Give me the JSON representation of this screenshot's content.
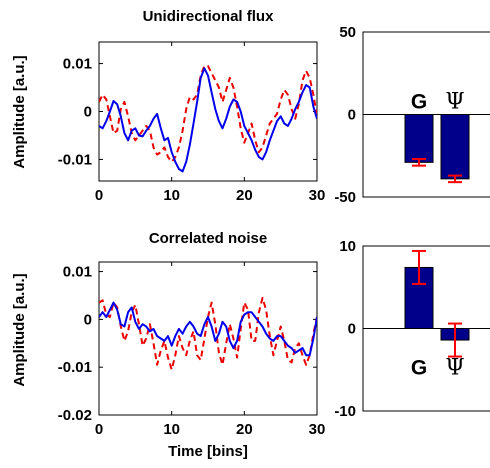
{
  "chart_data": [
    {
      "type": "line",
      "title": "Unidirectional flux",
      "ylabel": "Amplitude [a.u.]",
      "xlabel": "",
      "xlim": [
        0,
        30
      ],
      "ylim": [
        -0.0145,
        0.0145
      ],
      "xticks": [
        "0",
        "10",
        "20",
        "30"
      ],
      "yticks": [
        {
          "value": 0.01,
          "label": "0.01"
        },
        {
          "value": 0,
          "label": "0"
        },
        {
          "value": -0.01,
          "label": "-0.01"
        }
      ],
      "series": [
        {
          "color": "#0000ee",
          "style": "solid",
          "x": [
            0,
            0.5,
            1,
            1.5,
            2,
            2.5,
            3,
            3.5,
            4,
            4.5,
            5,
            5.5,
            6,
            6.5,
            7,
            7.5,
            8,
            8.5,
            9,
            9.5,
            10,
            10.5,
            11,
            11.5,
            12,
            12.5,
            13,
            13.5,
            14,
            14.5,
            15,
            15.5,
            16,
            16.5,
            17,
            17.5,
            18,
            18.5,
            19,
            19.5,
            20,
            20.5,
            21,
            21.5,
            22,
            22.5,
            23,
            23.5,
            24,
            24.5,
            25,
            25.5,
            26,
            26.5,
            27,
            27.5,
            28,
            28.5,
            29,
            29.5,
            30
          ],
          "y": [
            -0.003,
            -0.0035,
            -0.002,
            0,
            0.0022,
            0.0015,
            -0.001,
            -0.0045,
            -0.006,
            -0.004,
            -0.0035,
            -0.005,
            -0.0052,
            -0.004,
            -0.003,
            -0.0015,
            -0.0005,
            -0.0035,
            -0.006,
            -0.0055,
            -0.0085,
            -0.0105,
            -0.012,
            -0.0125,
            -0.0105,
            -0.007,
            -0.0025,
            0.002,
            0.007,
            0.009,
            0.0075,
            0.004,
            0.0005,
            -0.002,
            -0.0035,
            -0.0015,
            0.001,
            0.0025,
            0.002,
            0,
            -0.003,
            -0.0045,
            -0.006,
            -0.008,
            -0.0095,
            -0.01,
            -0.0085,
            -0.006,
            -0.004,
            -0.002,
            -0.001,
            -0.0025,
            -0.003,
            -0.0015,
            0.0005,
            0.002,
            0.004,
            0.0055,
            0.005,
            0.001,
            -0.0015
          ]
        },
        {
          "color": "#ee0000",
          "style": "dashed",
          "x": [
            0,
            0.5,
            1,
            1.5,
            2,
            2.5,
            3,
            3.5,
            4,
            4.5,
            5,
            5.5,
            6,
            6.5,
            7,
            7.5,
            8,
            8.5,
            9,
            9.5,
            10,
            10.5,
            11,
            11.5,
            12,
            12.5,
            13,
            13.5,
            14,
            14.5,
            15,
            15.5,
            16,
            16.5,
            17,
            17.5,
            18,
            18.5,
            19,
            19.5,
            20,
            20.5,
            21,
            21.5,
            22,
            22.5,
            23,
            23.5,
            24,
            24.5,
            25,
            25.5,
            26,
            26.5,
            27,
            27.5,
            28,
            28.5,
            29,
            29.5,
            30
          ],
          "y": [
            0.002,
            0.0035,
            0.0025,
            -0.001,
            -0.0045,
            -0.004,
            0.0005,
            0.002,
            -0.001,
            -0.0045,
            -0.006,
            -0.005,
            -0.004,
            -0.003,
            -0.004,
            -0.0075,
            -0.009,
            -0.0085,
            -0.0075,
            -0.0095,
            -0.0105,
            -0.0095,
            -0.0075,
            -0.004,
            0.0005,
            0.003,
            0.0025,
            0.0035,
            0.0075,
            0.0095,
            0.0095,
            0.008,
            0.0065,
            0.005,
            0.002,
            0.0045,
            0.007,
            0.005,
            0.001,
            -0.0035,
            -0.0065,
            -0.0045,
            -0.0025,
            -0.006,
            -0.0085,
            -0.0075,
            -0.005,
            -0.0025,
            -0.0015,
            -0.0005,
            0.0025,
            0.0045,
            0.0035,
            0.0005,
            -0.0015,
            0.0015,
            0.0065,
            0.0085,
            0.007,
            0.0035,
            -0.001
          ]
        }
      ]
    },
    {
      "type": "bar",
      "ylim": [
        -50,
        50
      ],
      "yticks": [
        {
          "value": 50,
          "label": "50"
        },
        {
          "value": 0,
          "label": "0"
        },
        {
          "value": -50,
          "label": "-50"
        }
      ],
      "categories": [
        "G",
        "Ψ"
      ],
      "values": [
        -29,
        -39
      ],
      "errors": [
        2,
        2
      ],
      "bar_color": "#00008b",
      "error_color": "#ff0000"
    },
    {
      "type": "line",
      "title": "Correlated noise",
      "ylabel": "Amplitude [a.u.]",
      "xlabel": "Time [bins]",
      "xlim": [
        0,
        30
      ],
      "ylim": [
        -0.02,
        0.012
      ],
      "xticks": [
        "0",
        "10",
        "20",
        "30"
      ],
      "yticks": [
        {
          "value": 0.01,
          "label": "0.01"
        },
        {
          "value": 0,
          "label": "0"
        },
        {
          "value": -0.01,
          "label": "-0.01"
        },
        {
          "value": -0.02,
          "label": "-0.02"
        }
      ],
      "series": [
        {
          "color": "#0000ee",
          "style": "solid",
          "x": [
            0,
            0.5,
            1,
            1.5,
            2,
            2.5,
            3,
            3.5,
            4,
            4.5,
            5,
            5.5,
            6,
            6.5,
            7,
            7.5,
            8,
            8.5,
            9,
            9.5,
            10,
            10.5,
            11,
            11.5,
            12,
            12.5,
            13,
            13.5,
            14,
            14.5,
            15,
            15.5,
            16,
            16.5,
            17,
            17.5,
            18,
            18.5,
            19,
            19.5,
            20,
            20.5,
            21,
            21.5,
            22,
            22.5,
            23,
            23.5,
            24,
            24.5,
            25,
            25.5,
            26,
            26.5,
            27,
            27.5,
            28,
            28.5,
            29,
            29.5,
            30
          ],
          "y": [
            0.0005,
            0.0015,
            0.0005,
            0.002,
            0.0035,
            0.002,
            -0.001,
            -0.0015,
            0.0015,
            0.0025,
            -0.0005,
            -0.002,
            -0.001,
            -0.0015,
            -0.0025,
            -0.002,
            -0.0035,
            -0.004,
            -0.0045,
            -0.0035,
            -0.0055,
            -0.0035,
            -0.002,
            -0.003,
            -0.0015,
            -0.0005,
            -0.0015,
            -0.003,
            -0.0035,
            -0.001,
            0.0005,
            -0.0015,
            -0.0045,
            -0.003,
            -0.0005,
            -0.0015,
            -0.0045,
            -0.006,
            -0.0045,
            -0.0005,
            0.001,
            0.0015,
            0.0015,
            0.0005,
            -0.0005,
            -0.0015,
            -0.003,
            -0.004,
            -0.0045,
            -0.0035,
            -0.0035,
            -0.0045,
            -0.0055,
            -0.006,
            -0.007,
            -0.0065,
            -0.006,
            -0.0075,
            -0.0075,
            -0.004,
            0.0005
          ]
        },
        {
          "color": "#ee0000",
          "style": "dashed",
          "x": [
            0,
            0.5,
            1,
            1.5,
            2,
            2.5,
            3,
            3.5,
            4,
            4.5,
            5,
            5.5,
            6,
            6.5,
            7,
            7.5,
            8,
            8.5,
            9,
            9.5,
            10,
            10.5,
            11,
            11.5,
            12,
            12.5,
            13,
            13.5,
            14,
            14.5,
            15,
            15.5,
            16,
            16.5,
            17,
            17.5,
            18,
            18.5,
            19,
            19.5,
            20,
            20.5,
            21,
            21.5,
            22,
            22.5,
            23,
            23.5,
            24,
            24.5,
            25,
            25.5,
            26,
            26.5,
            27,
            27.5,
            28,
            28.5,
            29,
            29.5,
            30
          ],
          "y": [
            0.0035,
            0.004,
            0.001,
            0.0005,
            0.0035,
            0.0025,
            -0.0015,
            -0.0045,
            -0.0025,
            0.0015,
            0.003,
            -0.001,
            -0.0055,
            -0.004,
            -0.001,
            -0.005,
            -0.0095,
            -0.0065,
            -0.0045,
            -0.008,
            -0.0105,
            -0.0075,
            -0.0035,
            -0.006,
            -0.0075,
            -0.0045,
            -0.0025,
            -0.0075,
            -0.0085,
            -0.004,
            0.0005,
            0.0035,
            -0.001,
            -0.007,
            -0.0095,
            -0.005,
            -0.001,
            -0.004,
            -0.008,
            -0.002,
            0.0035,
            0.002,
            -0.0045,
            -0.0045,
            0.0015,
            0.0045,
            0.002,
            -0.0035,
            -0.0075,
            -0.0045,
            -0.0015,
            -0.0045,
            -0.0085,
            -0.009,
            -0.006,
            -0.005,
            -0.0075,
            -0.0095,
            -0.0075,
            -0.003,
            0.0005
          ]
        }
      ]
    },
    {
      "type": "bar",
      "ylim": [
        -10,
        10
      ],
      "yticks": [
        {
          "value": 10,
          "label": "10"
        },
        {
          "value": 0,
          "label": "0"
        },
        {
          "value": -10,
          "label": "-10"
        }
      ],
      "categories": [
        "G",
        "Ψ"
      ],
      "values": [
        7.4,
        -1.4
      ],
      "errors": [
        2,
        2
      ],
      "bar_color": "#00008b",
      "error_color": "#ff0000"
    }
  ]
}
